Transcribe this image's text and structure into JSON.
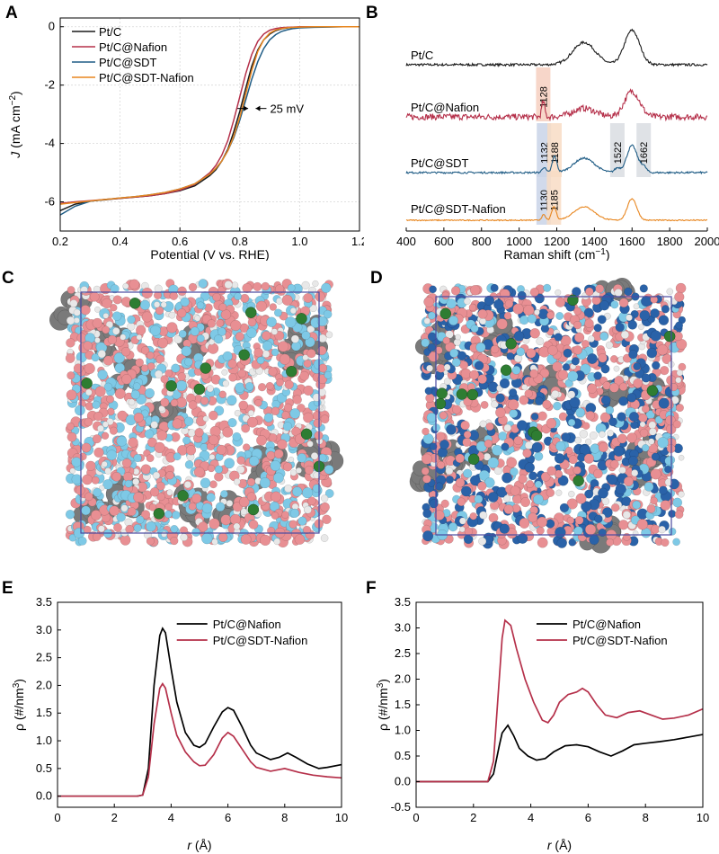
{
  "figure": {
    "panels": [
      "A",
      "B",
      "C",
      "D",
      "E",
      "F"
    ]
  },
  "chart_data": [
    {
      "id": "A",
      "type": "line",
      "xlabel": "Potential (V vs. RHE)",
      "ylabel_base": "J",
      "ylabel_units": "(mA cm",
      "ylabel_exp": "−2",
      "ylabel_close": ")",
      "xlim": [
        0.2,
        1.2
      ],
      "ylim": [
        -7,
        0.3
      ],
      "xticks": [
        0.2,
        0.4,
        0.6,
        0.8,
        1.0,
        1.2
      ],
      "xtick_labels": [
        "0.2",
        "0.4",
        "0.6",
        "0.8",
        "1.0",
        "1.2"
      ],
      "yticks": [
        0,
        -2,
        -4,
        -6
      ],
      "ytick_labels": [
        "0",
        "-2",
        "-4",
        "-6"
      ],
      "grid": true,
      "legend": "top-left",
      "annotation": "25 mV",
      "annotation_arrows_x": [
        0.828,
        0.853
      ],
      "annotation_y": -2.8,
      "series": [
        {
          "name": "Pt/C",
          "color": "#1a1a1a",
          "x": [
            0.2,
            0.25,
            0.3,
            0.35,
            0.4,
            0.45,
            0.5,
            0.55,
            0.6,
            0.65,
            0.7,
            0.72,
            0.74,
            0.76,
            0.78,
            0.8,
            0.82,
            0.84,
            0.86,
            0.88,
            0.9,
            0.92,
            0.94,
            0.96,
            0.98,
            1.0,
            1.05,
            1.1,
            1.15,
            1.2
          ],
          "y": [
            -6.3,
            -6.08,
            -5.97,
            -5.93,
            -5.88,
            -5.84,
            -5.79,
            -5.72,
            -5.62,
            -5.45,
            -5.1,
            -4.9,
            -4.6,
            -4.2,
            -3.6,
            -2.9,
            -2.1,
            -1.35,
            -0.8,
            -0.45,
            -0.25,
            -0.13,
            -0.07,
            -0.04,
            -0.02,
            -0.01,
            0,
            0,
            0,
            0
          ]
        },
        {
          "name": "Pt/C@Nafion",
          "color": "#b5304a",
          "x": [
            0.2,
            0.25,
            0.3,
            0.35,
            0.4,
            0.45,
            0.5,
            0.55,
            0.6,
            0.65,
            0.7,
            0.72,
            0.74,
            0.76,
            0.78,
            0.8,
            0.82,
            0.84,
            0.86,
            0.88,
            0.9,
            0.92,
            0.94,
            0.96,
            0.98,
            1.0,
            1.05,
            1.1,
            1.15,
            1.2
          ],
          "y": [
            -6.05,
            -6.0,
            -5.96,
            -5.92,
            -5.88,
            -5.84,
            -5.79,
            -5.72,
            -5.6,
            -5.4,
            -5.0,
            -4.75,
            -4.4,
            -3.9,
            -3.2,
            -2.4,
            -1.6,
            -0.95,
            -0.5,
            -0.25,
            -0.12,
            -0.06,
            -0.03,
            -0.02,
            -0.01,
            0,
            0,
            0,
            0,
            0
          ]
        },
        {
          "name": "Pt/C@SDT",
          "color": "#1f5c85",
          "x": [
            0.2,
            0.25,
            0.3,
            0.35,
            0.4,
            0.45,
            0.5,
            0.55,
            0.6,
            0.65,
            0.7,
            0.72,
            0.74,
            0.76,
            0.78,
            0.8,
            0.82,
            0.84,
            0.86,
            0.88,
            0.9,
            0.92,
            0.94,
            0.96,
            0.98,
            1.0,
            1.05,
            1.1,
            1.15,
            1.2
          ],
          "y": [
            -6.45,
            -6.15,
            -5.98,
            -5.92,
            -5.87,
            -5.82,
            -5.76,
            -5.68,
            -5.56,
            -5.38,
            -5.05,
            -4.85,
            -4.6,
            -4.25,
            -3.8,
            -3.2,
            -2.5,
            -1.8,
            -1.2,
            -0.75,
            -0.45,
            -0.27,
            -0.16,
            -0.1,
            -0.06,
            -0.04,
            -0.02,
            -0.01,
            0,
            0
          ]
        },
        {
          "name": "Pt/C@SDT-Nafion",
          "color": "#e8861f",
          "x": [
            0.2,
            0.25,
            0.3,
            0.35,
            0.4,
            0.45,
            0.5,
            0.55,
            0.6,
            0.65,
            0.7,
            0.72,
            0.74,
            0.76,
            0.78,
            0.8,
            0.82,
            0.84,
            0.86,
            0.88,
            0.9,
            0.92,
            0.94,
            0.96,
            0.98,
            1.0,
            1.05,
            1.1,
            1.15,
            1.2
          ],
          "y": [
            -6.08,
            -6.02,
            -5.97,
            -5.92,
            -5.87,
            -5.82,
            -5.76,
            -5.68,
            -5.56,
            -5.38,
            -5.05,
            -4.85,
            -4.6,
            -4.25,
            -3.75,
            -3.1,
            -2.3,
            -1.5,
            -0.85,
            -0.45,
            -0.22,
            -0.11,
            -0.06,
            -0.03,
            -0.02,
            -0.01,
            0,
            0,
            0,
            0
          ]
        }
      ]
    },
    {
      "id": "B",
      "type": "line",
      "xlabel_base": "Raman shift (cm",
      "xlabel_exp": "−1",
      "xlabel_close": ")",
      "xlim": [
        400,
        2000
      ],
      "xticks": [
        400,
        600,
        800,
        1000,
        1200,
        1400,
        1600,
        1800,
        2000
      ],
      "xtick_labels": [
        "400",
        "600",
        "800",
        "1000",
        "1200",
        "1400",
        "1600",
        "1800",
        "2000"
      ],
      "grid": false,
      "bands": [
        {
          "center": 1128,
          "label": "1128",
          "color": "#f6cfc0",
          "series": 1
        },
        {
          "center": 1132,
          "label": "1132",
          "color": "#c9d4e8",
          "series": 2
        },
        {
          "center": 1188,
          "label": "1188",
          "color": "#f8dcc4",
          "series": 2
        },
        {
          "center": 1522,
          "label": "1522",
          "color": "#d9dde2",
          "series": 2
        },
        {
          "center": 1662,
          "label": "1662",
          "color": "#d9dde2",
          "series": 2
        },
        {
          "center": 1130,
          "label": "1130",
          "color": "#c9d4e8",
          "series": 3
        },
        {
          "center": 1185,
          "label": "1185",
          "color": "#f8dcc4",
          "series": 3
        }
      ],
      "series": [
        {
          "name": "Pt/C",
          "color": "#1a1a1a",
          "noise": 0.03,
          "peaks": [
            [
              1345,
              0.55,
              60
            ],
            [
              1600,
              0.85,
              40
            ]
          ]
        },
        {
          "name": "Pt/C@Nafion",
          "color": "#b5304a",
          "noise": 0.09,
          "peaks": [
            [
              1128,
              0.45,
              8
            ],
            [
              1345,
              0.25,
              60
            ],
            [
              1600,
              0.75,
              40
            ]
          ]
        },
        {
          "name": "Pt/C@SDT",
          "color": "#1f5c85",
          "noise": 0.025,
          "peaks": [
            [
              1132,
              0.15,
              10
            ],
            [
              1188,
              0.45,
              12
            ],
            [
              1345,
              0.4,
              55
            ],
            [
              1522,
              0.12,
              15
            ],
            [
              1600,
              0.75,
              28
            ],
            [
              1662,
              0.15,
              15
            ]
          ]
        },
        {
          "name": "Pt/C@SDT-Nafion",
          "color": "#e8861f",
          "noise": 0.02,
          "peaks": [
            [
              1130,
              0.2,
              10
            ],
            [
              1185,
              0.5,
              12
            ],
            [
              1345,
              0.5,
              55
            ],
            [
              1600,
              0.8,
              25
            ]
          ]
        }
      ]
    },
    {
      "id": "E",
      "type": "line",
      "xlabel": "r (Å)",
      "xlabel_var": "r",
      "xlabel_unit": " (Å)",
      "ylabel_base": "ρ (#/nm",
      "ylabel_exp": "3",
      "ylabel_close": ")",
      "xlim": [
        0,
        10
      ],
      "ylim": [
        -0.2,
        3.5
      ],
      "xticks": [
        0,
        2,
        4,
        6,
        8,
        10
      ],
      "xtick_labels": [
        "0",
        "2",
        "4",
        "6",
        "8",
        "10"
      ],
      "yticks": [
        0.0,
        0.5,
        1.0,
        1.5,
        2.0,
        2.5,
        3.0,
        3.5
      ],
      "ytick_labels": [
        "0.0",
        "0.5",
        "1.0",
        "1.5",
        "2.0",
        "2.5",
        "3.0",
        "3.5"
      ],
      "grid": false,
      "legend": "top-right",
      "series": [
        {
          "name": "Pt/C@Nafion",
          "color": "#000000",
          "x": [
            0,
            1,
            2,
            2.8,
            3.0,
            3.2,
            3.4,
            3.6,
            3.7,
            3.8,
            4.0,
            4.2,
            4.5,
            4.8,
            5.0,
            5.2,
            5.5,
            5.8,
            6.0,
            6.2,
            6.5,
            6.8,
            7.0,
            7.5,
            7.8,
            8.1,
            8.4,
            8.8,
            9.2,
            9.5,
            10
          ],
          "y": [
            0,
            0,
            0,
            0,
            0.02,
            0.5,
            2.0,
            2.9,
            3.03,
            2.95,
            2.3,
            1.7,
            1.15,
            0.92,
            0.88,
            0.95,
            1.25,
            1.52,
            1.6,
            1.55,
            1.25,
            0.92,
            0.78,
            0.66,
            0.7,
            0.78,
            0.7,
            0.58,
            0.5,
            0.52,
            0.57
          ]
        },
        {
          "name": "Pt/C@SDT-Nafion",
          "color": "#b5304a",
          "x": [
            0,
            1,
            2,
            2.8,
            3.0,
            3.2,
            3.4,
            3.6,
            3.7,
            3.8,
            4.0,
            4.2,
            4.5,
            4.8,
            5.0,
            5.2,
            5.5,
            5.8,
            6.0,
            6.2,
            6.5,
            6.8,
            7.0,
            7.5,
            8.0,
            8.5,
            9.0,
            9.5,
            10
          ],
          "y": [
            0,
            0,
            0,
            0,
            0.02,
            0.35,
            1.3,
            1.95,
            2.03,
            1.95,
            1.5,
            1.1,
            0.8,
            0.62,
            0.55,
            0.56,
            0.75,
            1.05,
            1.15,
            1.08,
            0.85,
            0.62,
            0.52,
            0.45,
            0.5,
            0.43,
            0.38,
            0.35,
            0.33
          ]
        }
      ]
    },
    {
      "id": "F",
      "type": "line",
      "xlabel": "r (Å)",
      "xlabel_var": "r",
      "xlabel_unit": " (Å)",
      "ylabel_base": "ρ (#/nm",
      "ylabel_exp": "3",
      "ylabel_close": ")",
      "xlim": [
        0,
        10
      ],
      "ylim": [
        -0.5,
        3.5
      ],
      "xticks": [
        0,
        2,
        4,
        6,
        8,
        10
      ],
      "xtick_labels": [
        "0",
        "2",
        "4",
        "6",
        "8",
        "10"
      ],
      "yticks": [
        -0.5,
        0.0,
        0.5,
        1.0,
        1.5,
        2.0,
        2.5,
        3.0,
        3.5
      ],
      "ytick_labels": [
        "-0.5",
        "0.0",
        "0.5",
        "1.0",
        "1.5",
        "2.0",
        "2.5",
        "3.0",
        "3.5"
      ],
      "grid": false,
      "legend": "top-right",
      "series": [
        {
          "name": "Pt/C@Nafion",
          "color": "#000000",
          "x": [
            0,
            1,
            2,
            2.5,
            2.7,
            2.9,
            3.0,
            3.2,
            3.4,
            3.6,
            3.9,
            4.2,
            4.5,
            4.8,
            5.2,
            5.6,
            6.0,
            6.4,
            6.8,
            7.2,
            7.6,
            8.0,
            8.5,
            9.0,
            9.5,
            10
          ],
          "y": [
            0,
            0,
            0,
            0,
            0.15,
            0.7,
            0.95,
            1.1,
            0.9,
            0.65,
            0.5,
            0.42,
            0.45,
            0.58,
            0.7,
            0.72,
            0.68,
            0.58,
            0.5,
            0.6,
            0.72,
            0.75,
            0.78,
            0.82,
            0.87,
            0.92
          ]
        },
        {
          "name": "Pt/C@SDT-Nafion",
          "color": "#b5304a",
          "x": [
            0,
            1,
            2,
            2.5,
            2.7,
            2.9,
            3.0,
            3.1,
            3.3,
            3.5,
            3.8,
            4.1,
            4.4,
            4.6,
            4.8,
            5.0,
            5.3,
            5.6,
            5.8,
            6.0,
            6.3,
            6.6,
            7.0,
            7.4,
            7.8,
            8.2,
            8.6,
            9.0,
            9.5,
            10
          ],
          "y": [
            0,
            0,
            0,
            0,
            0.4,
            2.0,
            2.8,
            3.15,
            3.05,
            2.6,
            2.0,
            1.55,
            1.2,
            1.15,
            1.3,
            1.55,
            1.7,
            1.75,
            1.82,
            1.75,
            1.5,
            1.3,
            1.25,
            1.35,
            1.38,
            1.3,
            1.22,
            1.24,
            1.3,
            1.42
          ]
        }
      ]
    },
    {
      "id": "C",
      "type": "other",
      "colors": {
        "pink": "#e88f93",
        "light_blue": "#7ec9e6",
        "gray": "#7a7a7a",
        "green": "#2e7d32",
        "white": "#e8e8e8",
        "box": "#4a4aa0"
      }
    },
    {
      "id": "D",
      "type": "other",
      "colors": {
        "pink": "#e88f93",
        "light_blue": "#7ec9e6",
        "dark_blue": "#2a62a8",
        "gray": "#7a7a7a",
        "green": "#2e7d32",
        "white": "#e8e8e8",
        "box": "#4a4aa0"
      }
    }
  ]
}
